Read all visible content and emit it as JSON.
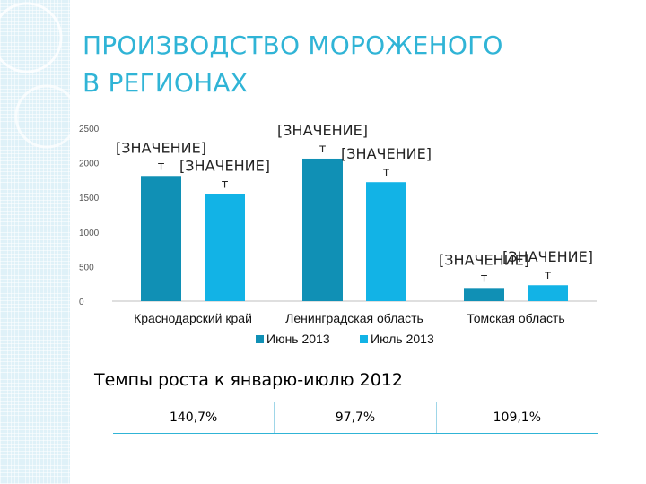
{
  "slide": {
    "title_line1": "ПРОИЗВОДСТВО МОРОЖЕНОГО",
    "title_line2": "В РЕГИОНАХ",
    "subtitle": "Темпы роста к январю-июлю 2012"
  },
  "growth_table": [
    "140,7%",
    "97,7%",
    "109,1%"
  ],
  "colors": {
    "accent": "#30b4d6",
    "series_june": "#1090b5",
    "series_july": "#12b3e6",
    "sidebar": "#dff1f8"
  },
  "chart_data": {
    "type": "bar",
    "categories": [
      "Краснодарский край",
      "Ленинградская область",
      "Томская область"
    ],
    "series": [
      {
        "name": "Июнь 2013",
        "values": [
          1810,
          2060,
          190
        ]
      },
      {
        "name": "Июль 2013",
        "values": [
          1550,
          1720,
          230
        ]
      }
    ],
    "data_labels": [
      [
        "[ЗНАЧЕНИЕ]",
        "т"
      ],
      [
        "[ЗНАЧЕНИЕ]",
        "т"
      ],
      [
        "[ЗНАЧЕНИЕ]",
        "т"
      ],
      [
        "[ЗНАЧЕНИЕ]",
        "т"
      ],
      [
        "[ЗНАЧЕНИЕ]",
        "т"
      ],
      [
        "[ЗНАЧЕНИЕ]",
        "т"
      ]
    ],
    "yticks": [
      0,
      500,
      1000,
      1500,
      2000,
      2500
    ],
    "ylim": [
      0,
      2500
    ],
    "grid": false,
    "legend": "bottom"
  }
}
